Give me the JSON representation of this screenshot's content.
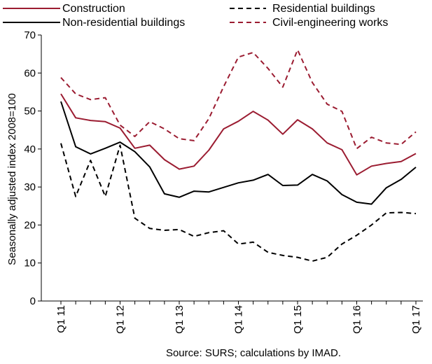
{
  "chart_data": {
    "type": "line",
    "title": "",
    "xlabel": "",
    "ylabel": "Seasonally adjusted index 2008=100",
    "ylim": [
      0,
      70
    ],
    "yticks": [
      0,
      10,
      20,
      30,
      40,
      50,
      60,
      70
    ],
    "grid": false,
    "legend_position": "top",
    "x": [
      "Q1 11",
      "Q2 11",
      "Q3 11",
      "Q4 11",
      "Q1 12",
      "Q2 12",
      "Q3 12",
      "Q4 12",
      "Q1 13",
      "Q2 13",
      "Q3 13",
      "Q4 13",
      "Q1 14",
      "Q2 14",
      "Q3 14",
      "Q4 14",
      "Q1 15",
      "Q2 15",
      "Q3 15",
      "Q4 15",
      "Q1 16",
      "Q2 16",
      "Q3 16",
      "Q4 16",
      "Q1 17"
    ],
    "x_tick_labels": [
      "Q1 11",
      "Q1 12",
      "Q1 13",
      "Q1 14",
      "Q1 15",
      "Q1 16",
      "Q1 17"
    ],
    "series": [
      {
        "name": "Construction",
        "color": "#9b1c31",
        "dash": "solid",
        "values": [
          54.5,
          48.2,
          47.5,
          47.2,
          45.5,
          40.2,
          41.0,
          37.2,
          34.7,
          35.5,
          39.7,
          45.3,
          47.3,
          49.9,
          47.6,
          43.9,
          47.7,
          45.3,
          41.6,
          39.8,
          33.2,
          35.5,
          36.2,
          36.7,
          38.8
        ]
      },
      {
        "name": "Non-residential buildings",
        "color": "#000000",
        "dash": "solid",
        "values": [
          52.5,
          40.6,
          38.7,
          40.2,
          41.8,
          39.3,
          35.3,
          28.2,
          27.3,
          28.9,
          28.7,
          29.9,
          31.1,
          31.8,
          33.3,
          30.4,
          30.5,
          33.3,
          31.6,
          28.0,
          26.0,
          25.5,
          29.8,
          32.0,
          35.2
        ]
      },
      {
        "name": "Residential buildings",
        "color": "#000000",
        "dash": "dashed",
        "values": [
          41.5,
          27.5,
          37.0,
          27.5,
          41.0,
          21.8,
          19.1,
          18.6,
          18.8,
          17.0,
          18.0,
          18.5,
          15.0,
          15.5,
          12.8,
          12.0,
          11.5,
          10.5,
          11.5,
          15.0,
          17.3,
          20.0,
          23.2,
          23.3,
          23.0
        ]
      },
      {
        "name": "Civil-engineering works",
        "color": "#9b1c31",
        "dash": "dashed",
        "values": [
          58.8,
          54.5,
          53.0,
          53.5,
          46.3,
          43.3,
          47.2,
          45.3,
          42.7,
          42.2,
          48.0,
          56.4,
          64.2,
          65.4,
          61.2,
          56.3,
          66.1,
          57.5,
          51.8,
          49.9,
          40.1,
          43.1,
          41.6,
          41.2,
          44.5
        ]
      }
    ],
    "source_note": "Source: SURS; calculations by IMAD."
  }
}
